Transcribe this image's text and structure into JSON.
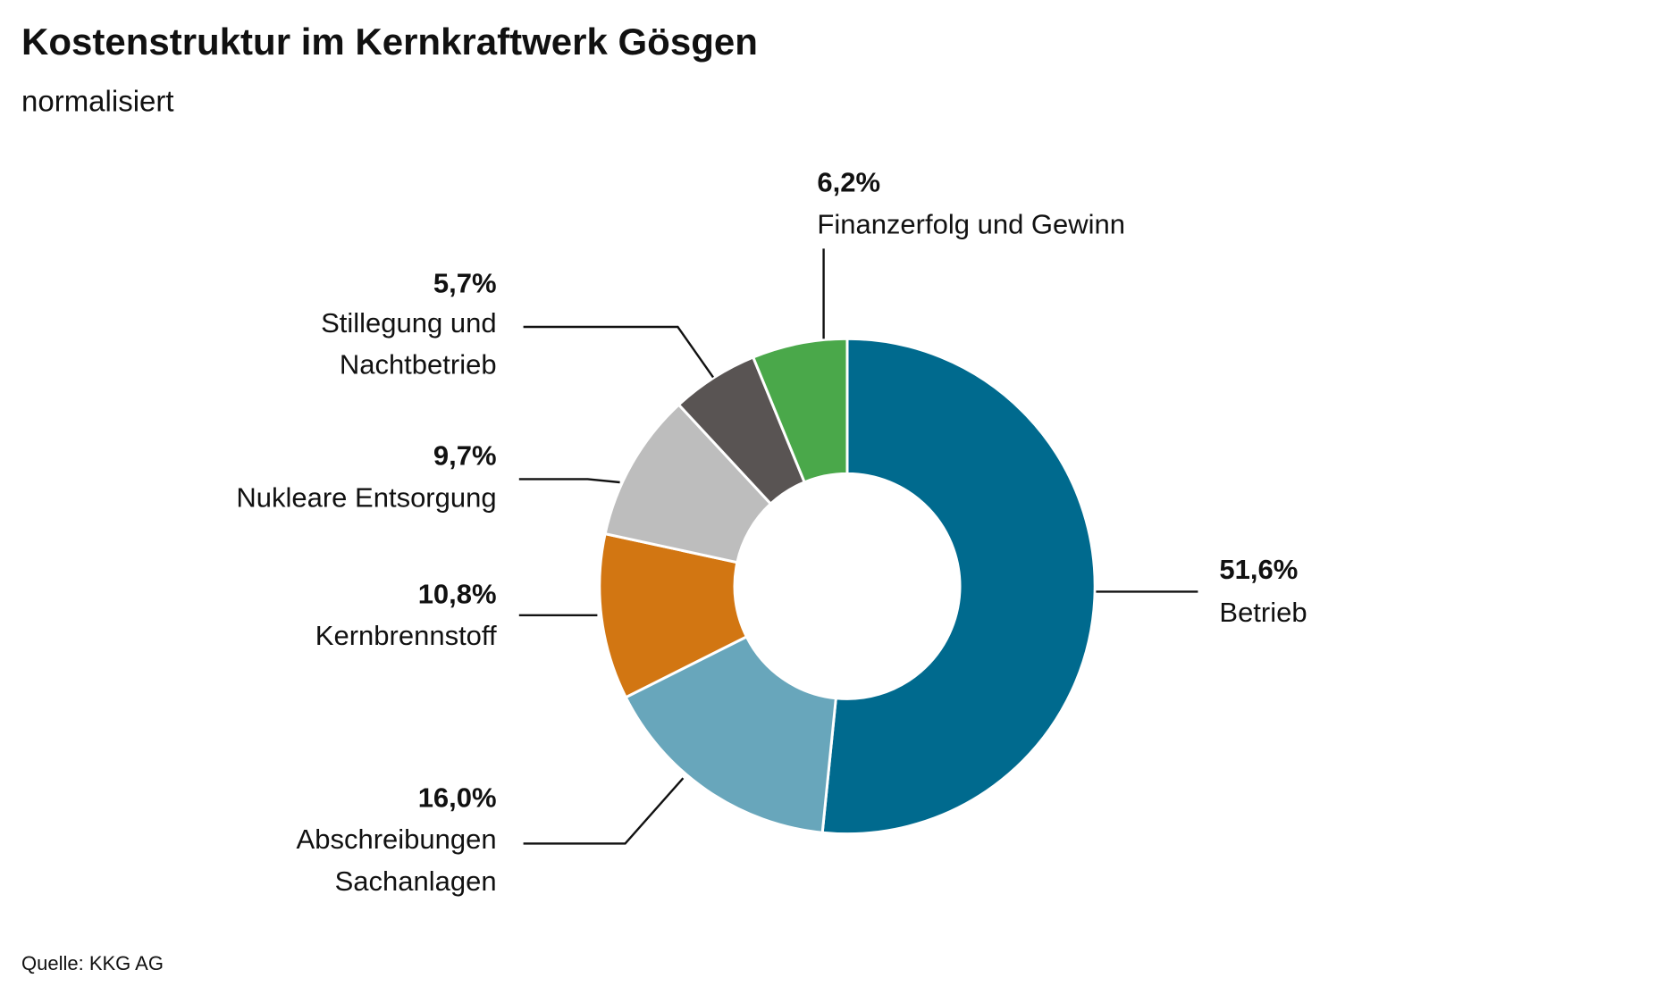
{
  "chart_data": {
    "type": "donut",
    "title": "Kostenstruktur im Kernkraftwerk Gösgen",
    "subtitle": "normalisiert",
    "source": "Quelle: KKG AG",
    "labels": [
      [
        "Betrieb"
      ],
      [
        "Abschreibungen",
        "Sachanlagen"
      ],
      [
        "Kernbrennstoff"
      ],
      [
        "Nukleare Entsorgung"
      ],
      [
        "Stillegung und",
        "Nachtbetrieb"
      ],
      [
        "Finanzerfolg und Gewinn"
      ]
    ],
    "values": [
      51.6,
      16.0,
      10.8,
      9.7,
      5.7,
      6.2
    ],
    "value_labels": [
      "51,6%",
      "16,0%",
      "10,8%",
      "9,7%",
      "5,7%",
      "6,2%"
    ],
    "colors": [
      "#006a8e",
      "#68a6bb",
      "#d27612",
      "#bdbdbd",
      "#595453",
      "#4aa84a"
    ]
  }
}
